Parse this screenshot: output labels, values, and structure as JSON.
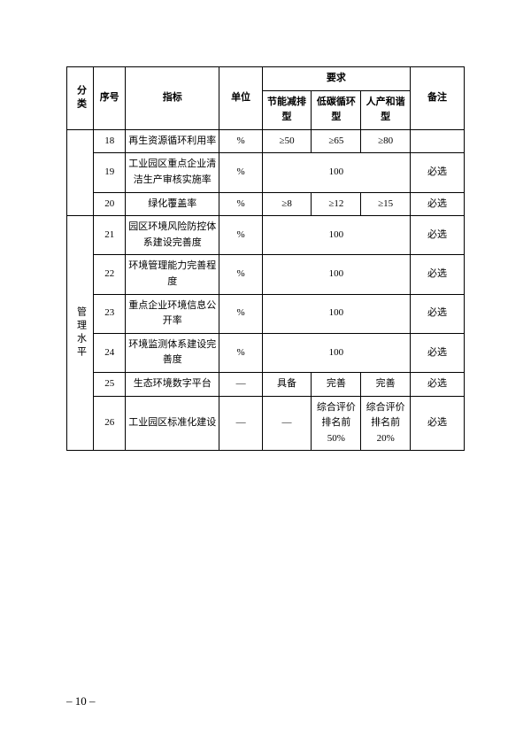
{
  "table": {
    "headers": {
      "category": "分类",
      "seq": "序号",
      "indicator": "指标",
      "unit": "单位",
      "requirements": "要求",
      "req1": "节能减排型",
      "req2": "低碳循环型",
      "req3": "人产和谐型",
      "note": "备注"
    },
    "group1": {
      "rows": [
        {
          "seq": "18",
          "indicator": "再生资源循环利用率",
          "unit": "%",
          "r1": "≥50",
          "r2": "≥65",
          "r3": "≥80",
          "note": ""
        },
        {
          "seq": "19",
          "indicator": "工业园区重点企业清洁生产审核实施率",
          "unit": "%",
          "merged": "100",
          "note": "必选"
        },
        {
          "seq": "20",
          "indicator": "绿化覆盖率",
          "unit": "%",
          "r1": "≥8",
          "r2": "≥12",
          "r3": "≥15",
          "note": "必选"
        }
      ]
    },
    "group2": {
      "category": "管理水平",
      "rows": [
        {
          "seq": "21",
          "indicator": "园区环境风险防控体系建设完善度",
          "unit": "%",
          "merged": "100",
          "note": "必选"
        },
        {
          "seq": "22",
          "indicator": "环境管理能力完善程度",
          "unit": "%",
          "merged": "100",
          "note": "必选"
        },
        {
          "seq": "23",
          "indicator": "重点企业环境信息公开率",
          "unit": "%",
          "merged": "100",
          "note": "必选"
        },
        {
          "seq": "24",
          "indicator": "环境监测体系建设完善度",
          "unit": "%",
          "merged": "100",
          "note": "必选"
        },
        {
          "seq": "25",
          "indicator": "生态环境数字平台",
          "unit": "—",
          "r1": "具备",
          "r2": "完善",
          "r3": "完善",
          "note": "必选"
        },
        {
          "seq": "26",
          "indicator": "工业园区标准化建设",
          "unit": "—",
          "r1": "—",
          "r2": "综合评价排名前 50%",
          "r3": "综合评价排名前 20%",
          "note": "必选"
        }
      ]
    }
  },
  "pageNumber": "– 10 –"
}
